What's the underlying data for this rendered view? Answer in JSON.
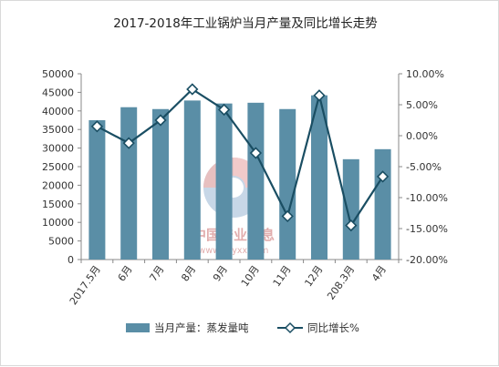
{
  "chart_data": {
    "type": "bar+line",
    "title": "2017-2018年工业锅炉当月产量及同比增长走势",
    "categories": [
      "2017.5月",
      "6月",
      "7月",
      "8月",
      "9月",
      "10月",
      "11月",
      "12月",
      "208.3月",
      "4月"
    ],
    "series": [
      {
        "name": "当月产量：蒸发量吨",
        "type": "bar",
        "axis": "left",
        "color": "#5a8ea6",
        "values": [
          37500,
          41000,
          40500,
          42800,
          42000,
          42200,
          40500,
          44200,
          27000,
          29700
        ]
      },
      {
        "name": "同比增长%",
        "type": "line",
        "axis": "right",
        "color": "#1a4e63",
        "marker": "diamond",
        "values": [
          1.5,
          -1.2,
          2.5,
          7.5,
          4.2,
          -2.8,
          -13.0,
          6.5,
          -14.5,
          -6.6
        ]
      }
    ],
    "y_left": {
      "min": 0,
      "max": 50000,
      "ticks": [
        "0",
        "5000",
        "10000",
        "15000",
        "20000",
        "25000",
        "30000",
        "35000",
        "40000",
        "45000",
        "50000"
      ]
    },
    "y_right": {
      "min": -20,
      "max": 10,
      "ticks": [
        "-20.00%",
        "-15.00%",
        "-10.00%",
        "-5.00%",
        "0.00%",
        "5.00%",
        "10.00%"
      ]
    },
    "grid": false,
    "legend_position": "bottom"
  },
  "watermark": {
    "line1": "中国产业信息",
    "line2": "www.chyxx.com"
  }
}
